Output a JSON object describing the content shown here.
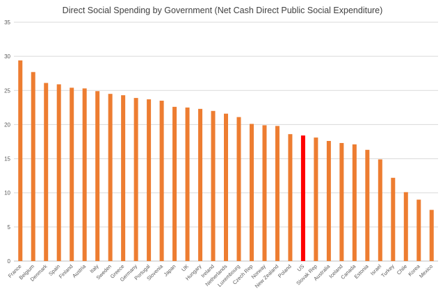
{
  "chart_data": {
    "type": "bar",
    "title": "Direct Social Spending by Government (Net Cash Direct Public Social Expenditure)",
    "xlabel": "",
    "ylabel": "",
    "ylim": [
      0,
      35
    ],
    "yticks": [
      0,
      5,
      10,
      15,
      20,
      25,
      30,
      35
    ],
    "grid": true,
    "legend": "none",
    "categories": [
      "France",
      "Belgium",
      "Denmark",
      "Spain",
      "Finland",
      "Austria",
      "Italy",
      "Sweden",
      "Greece",
      "Germany",
      "Portugal",
      "Slovenia",
      "Japan",
      "UK",
      "Hungary",
      "Ireland",
      "Netherlands",
      "Luxembourg",
      "Czech Rep",
      "Norway",
      "New Zealand",
      "Poland",
      "US",
      "Slovak Rep",
      "Australia",
      "Iceland",
      "Canada",
      "Estonia",
      "Israel",
      "Turkey",
      "Chile",
      "Korea",
      "Mexico"
    ],
    "values": [
      29.4,
      27.7,
      26.1,
      25.9,
      25.4,
      25.3,
      24.9,
      24.5,
      24.3,
      23.9,
      23.7,
      23.5,
      22.6,
      22.5,
      22.3,
      22.0,
      21.6,
      21.1,
      20.1,
      19.9,
      19.8,
      18.6,
      18.4,
      18.1,
      17.6,
      17.3,
      17.1,
      16.3,
      14.9,
      12.2,
      10.1,
      9.0,
      7.5
    ],
    "highlight_category": "US",
    "colors": {
      "bar": "#ED7D31",
      "highlight": "#FF0000",
      "grid": "#D9D9D9"
    }
  }
}
